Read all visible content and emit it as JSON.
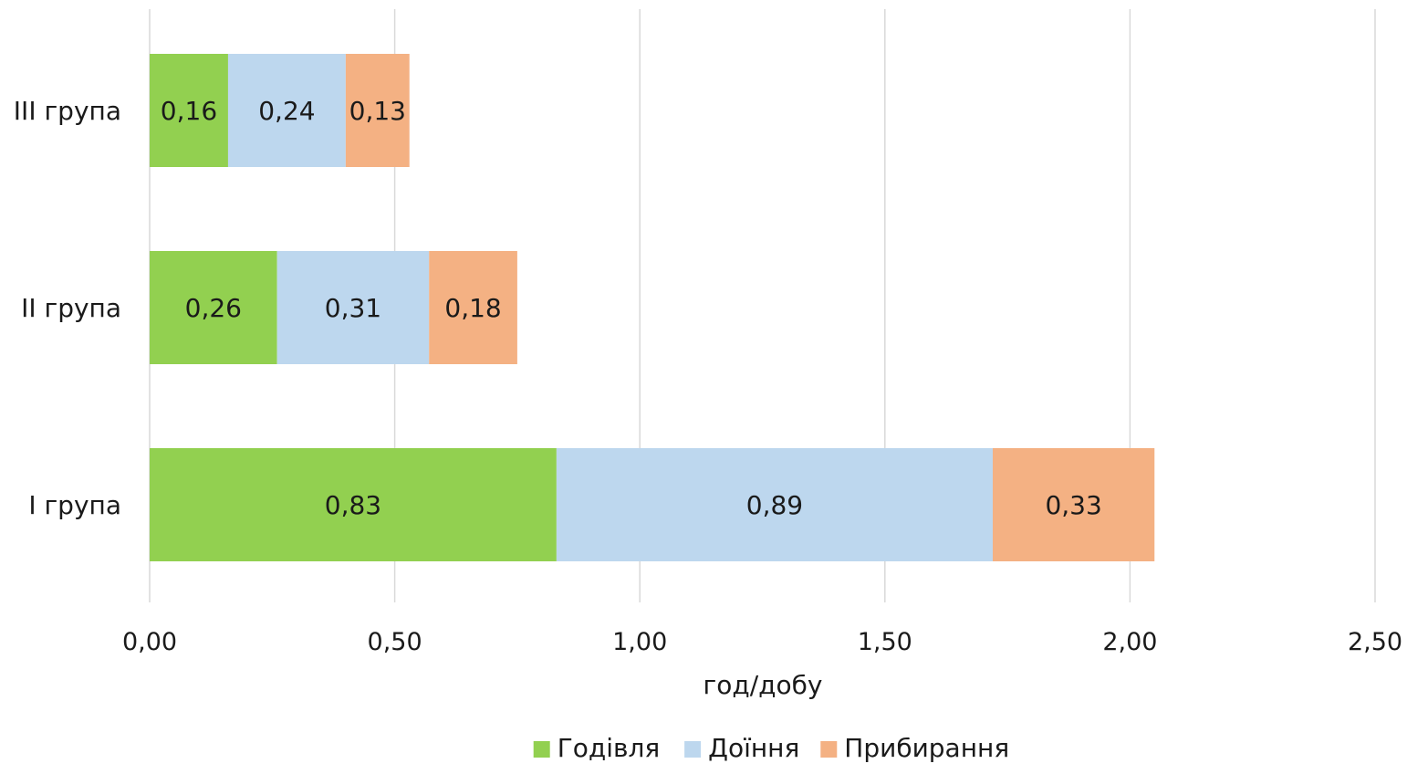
{
  "chart_data": {
    "type": "bar",
    "orientation": "horizontal",
    "stacked": true,
    "categories": [
      "III група",
      "II група",
      "I група"
    ],
    "series": [
      {
        "name": "Годівля",
        "color": "#92d050",
        "values": [
          0.16,
          0.26,
          0.83
        ],
        "labels": [
          "0,16",
          "0,26",
          "0,83"
        ]
      },
      {
        "name": "Доїння",
        "color": "#bdd7ee",
        "values": [
          0.24,
          0.31,
          0.89
        ],
        "labels": [
          "0,24",
          "0,31",
          "0,89"
        ]
      },
      {
        "name": "Прибирання",
        "color": "#f4b183",
        "values": [
          0.13,
          0.18,
          0.33
        ],
        "labels": [
          "0,13",
          "0,18",
          "0,33"
        ]
      }
    ],
    "xlabel": "год/добу",
    "xlim": [
      0,
      2.5
    ],
    "xticks": [
      0,
      0.5,
      1.0,
      1.5,
      2.0,
      2.5
    ],
    "xtick_labels": [
      "0,00",
      "0,50",
      "1,00",
      "1,50",
      "2,00",
      "2,50"
    ],
    "grid": "vertical",
    "legend": "bottom"
  }
}
